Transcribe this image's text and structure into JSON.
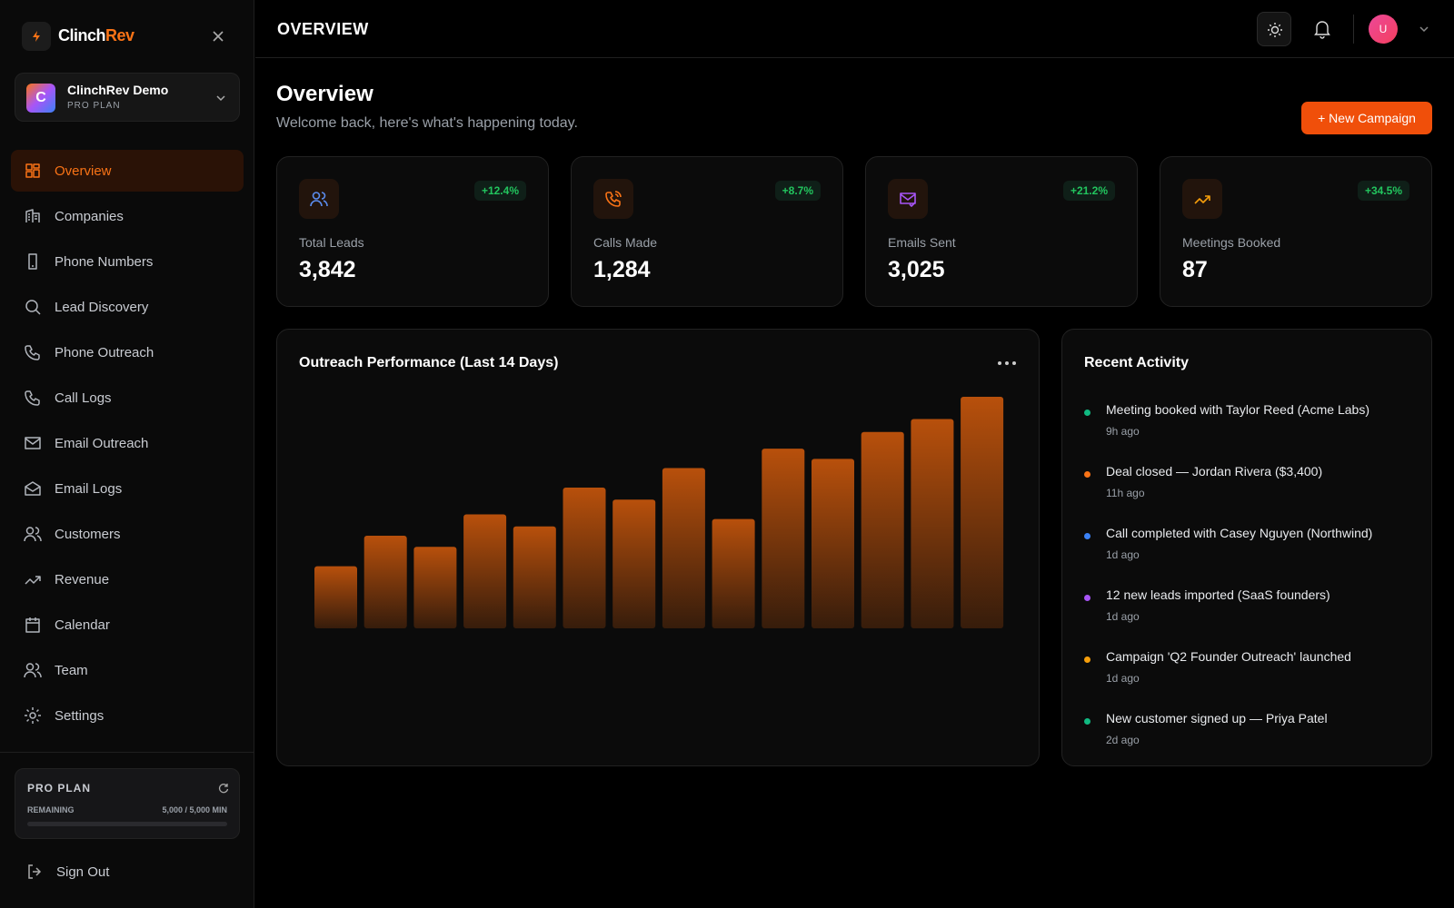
{
  "brand": {
    "name_a": "Clinch",
    "name_b": "Rev"
  },
  "workspace": {
    "initial": "C",
    "name": "ClinchRev Demo",
    "plan": "PRO PLAN"
  },
  "nav": {
    "active": 0,
    "items": [
      "Overview",
      "Companies",
      "Phone Numbers",
      "Lead Discovery",
      "Phone Outreach",
      "Call Logs",
      "Email Outreach",
      "Email Logs",
      "Customers",
      "Revenue",
      "Calendar",
      "Team",
      "Settings"
    ]
  },
  "plan_box": {
    "title": "PRO PLAN",
    "remaining_label": "REMAINING",
    "remaining": "5,000 / 5,000 MIN"
  },
  "sign_out": "Sign Out",
  "header": {
    "title": "OVERVIEW",
    "avatar": "U"
  },
  "page": {
    "title": "Overview",
    "subtitle": "Welcome back, here's what's happening today.",
    "button": "+ New Campaign"
  },
  "stats": [
    {
      "label": "Total Leads",
      "value": "3,842",
      "change": "+12.4%",
      "color": "#5b8def"
    },
    {
      "label": "Calls Made",
      "value": "1,284",
      "change": "+8.7%",
      "color": "#f97316"
    },
    {
      "label": "Emails Sent",
      "value": "3,025",
      "change": "+21.2%",
      "color": "#a855f7"
    },
    {
      "label": "Meetings Booked",
      "value": "87",
      "change": "+34.5%",
      "color": "#f59e0b"
    }
  ],
  "chart": {
    "type": "bar",
    "title": "Outreach Performance (Last 14 Days)",
    "values": [
      67,
      100,
      88,
      123,
      110,
      152,
      139,
      173,
      118,
      194,
      183,
      212,
      226,
      250
    ],
    "color": "#b8500c"
  },
  "activity": {
    "title": "Recent Activity",
    "items": [
      {
        "text": "Meeting booked with Taylor Reed (Acme Labs)",
        "time": "9h ago",
        "color": "#10b981"
      },
      {
        "text": "Deal closed — Jordan Rivera ($3,400)",
        "time": "11h ago",
        "color": "#f97316"
      },
      {
        "text": "Call completed with Casey Nguyen (Northwind)",
        "time": "1d ago",
        "color": "#3b82f6"
      },
      {
        "text": "12 new leads imported (SaaS founders)",
        "time": "1d ago",
        "color": "#a855f7"
      },
      {
        "text": "Campaign 'Q2 Founder Outreach' launched",
        "time": "1d ago",
        "color": "#f59e0b"
      },
      {
        "text": "New customer signed up — Priya Patel",
        "time": "2d ago",
        "color": "#10b981"
      }
    ]
  }
}
